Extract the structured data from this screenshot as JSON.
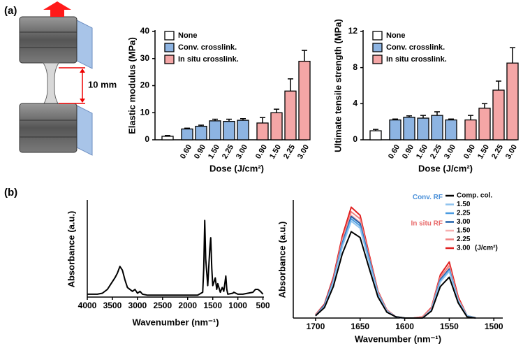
{
  "panels": [
    "(a)",
    "(b)"
  ],
  "schematic": {
    "label": "10 mm"
  },
  "chart_data": [
    {
      "type": "bar",
      "ylabel": "Elastic modulus (MPa)",
      "xlabel": "Dose (J/cm²)",
      "categories": [
        null,
        "0.60",
        "0.90",
        "1.50",
        "2.25",
        "3.00",
        "0.90",
        "1.50",
        "2.25",
        "3.00"
      ],
      "ylim": [
        0,
        40
      ],
      "yticks": [
        0,
        10,
        20,
        30,
        40
      ],
      "series": [
        {
          "name": "None",
          "color": "#ffffff",
          "values": [
            1.3,
            null,
            null,
            null,
            null,
            null,
            null,
            null,
            null,
            null
          ],
          "errors": [
            0.3,
            null,
            null,
            null,
            null,
            null,
            null,
            null,
            null,
            null
          ]
        },
        {
          "name": "Conv. crosslink.",
          "color": "#8db4e2",
          "values": [
            null,
            4.0,
            5.0,
            7.0,
            6.8,
            7.2,
            null,
            null,
            null,
            null
          ],
          "errors": [
            null,
            0.3,
            0.4,
            0.6,
            0.8,
            0.6,
            null,
            null,
            null,
            null
          ]
        },
        {
          "name": "In situ crosslink.",
          "color": "#f4a6a6",
          "values": [
            null,
            null,
            null,
            null,
            null,
            null,
            6.2,
            10,
            18,
            29
          ],
          "errors": [
            null,
            null,
            null,
            null,
            null,
            null,
            2.0,
            1.3,
            4.5,
            4.0
          ]
        }
      ]
    },
    {
      "type": "bar",
      "ylabel": "Ultimate tensile strength (MPa)",
      "xlabel": "Dose (J/cm²)",
      "categories": [
        null,
        "0.60",
        "0.90",
        "1.50",
        "2.25",
        "3.00",
        "0.90",
        "1.50",
        "2.25",
        "3.00"
      ],
      "ylim": [
        0,
        12
      ],
      "yticks": [
        0,
        4,
        8,
        12
      ],
      "series": [
        {
          "name": "None",
          "color": "#ffffff",
          "values": [
            1.0,
            null,
            null,
            null,
            null,
            null,
            null,
            null,
            null,
            null
          ],
          "errors": [
            0.15,
            null,
            null,
            null,
            null,
            null,
            null,
            null,
            null,
            null
          ]
        },
        {
          "name": "Conv. crosslink.",
          "color": "#8db4e2",
          "values": [
            null,
            2.2,
            2.5,
            2.4,
            2.7,
            2.2,
            null,
            null,
            null,
            null
          ],
          "errors": [
            null,
            0.1,
            0.15,
            0.3,
            0.4,
            0.1,
            null,
            null,
            null,
            null
          ]
        },
        {
          "name": "In situ crosslink.",
          "color": "#f4a6a6",
          "values": [
            null,
            null,
            null,
            null,
            null,
            null,
            2.2,
            3.5,
            5.5,
            8.5
          ],
          "errors": [
            null,
            null,
            null,
            null,
            null,
            null,
            0.5,
            0.5,
            1.0,
            1.7
          ]
        }
      ]
    },
    {
      "type": "line",
      "ylabel": "Absorbance (a.u.)",
      "xlabel": "Wavenumber (nm⁻¹)",
      "xlim": [
        4000,
        480
      ],
      "xticks": [
        4000,
        3500,
        3000,
        2500,
        2000,
        1500,
        1000,
        500
      ],
      "ylim": [
        0,
        1
      ],
      "x": [
        4000,
        3800,
        3700,
        3600,
        3500,
        3450,
        3400,
        3350,
        3300,
        3250,
        3200,
        3100,
        3050,
        3000,
        2950,
        2900,
        2800,
        2500,
        2000,
        1800,
        1700,
        1680,
        1660,
        1640,
        1600,
        1560,
        1540,
        1520,
        1500,
        1450,
        1420,
        1400,
        1350,
        1310,
        1280,
        1240,
        1220,
        1200,
        1100,
        1080,
        1000,
        900,
        700,
        650,
        600,
        550,
        500
      ],
      "series": [
        {
          "name": null,
          "color": "#000000",
          "values": [
            0.03,
            0.03,
            0.04,
            0.08,
            0.16,
            0.2,
            0.25,
            0.32,
            0.28,
            0.18,
            0.1,
            0.06,
            0.08,
            0.04,
            0.06,
            0.03,
            0.02,
            0.02,
            0.02,
            0.02,
            0.05,
            0.3,
            0.8,
            0.4,
            0.12,
            0.5,
            0.62,
            0.3,
            0.12,
            0.2,
            0.08,
            0.14,
            0.05,
            0.1,
            0.06,
            0.22,
            0.08,
            0.03,
            0.04,
            0.05,
            0.03,
            0.03,
            0.05,
            0.08,
            0.08,
            0.06,
            0.03
          ]
        }
      ]
    },
    {
      "type": "line",
      "ylabel": "Absorbance (a.u.)",
      "xlabel": "Wavenumber (nm⁻¹)",
      "xlim": [
        1725,
        1490
      ],
      "xticks": [
        1700,
        1650,
        1600,
        1550,
        1500
      ],
      "ylim": [
        0,
        1
      ],
      "x": [
        1700,
        1690,
        1680,
        1670,
        1660,
        1650,
        1640,
        1630,
        1620,
        1610,
        1600,
        1590,
        1580,
        1570,
        1560,
        1550,
        1540,
        1530,
        1520
      ],
      "legend_unit": "(J/cm²)",
      "series": [
        {
          "name": "Comp. col.",
          "color": "#000000",
          "values": [
            0.02,
            0.09,
            0.27,
            0.55,
            0.74,
            0.69,
            0.43,
            0.18,
            0.05,
            0.01,
            0,
            0,
            0,
            0.06,
            0.27,
            0.35,
            0.13,
            0.01,
            0
          ]
        },
        {
          "name": "1.50",
          "color": "#8fc3ee",
          "group": "Conv. RF",
          "group_color": "#4a90d9",
          "values": [
            0.02,
            0.1,
            0.31,
            0.61,
            0.83,
            0.77,
            0.48,
            0.2,
            0.06,
            0.01,
            0,
            0,
            0,
            0.07,
            0.31,
            0.4,
            0.15,
            0.02,
            0
          ]
        },
        {
          "name": "2.25",
          "color": "#4a9be0",
          "values": [
            0.02,
            0.1,
            0.31,
            0.63,
            0.85,
            0.79,
            0.5,
            0.21,
            0.06,
            0.01,
            0,
            0,
            0,
            0.07,
            0.32,
            0.41,
            0.15,
            0.02,
            0
          ]
        },
        {
          "name": "3.00",
          "color": "#1f5fa8",
          "values": [
            0.02,
            0.11,
            0.32,
            0.64,
            0.87,
            0.81,
            0.51,
            0.21,
            0.06,
            0.01,
            0,
            0,
            0,
            0.07,
            0.33,
            0.42,
            0.15,
            0.02,
            0
          ]
        },
        {
          "name": "1.50",
          "color": "#f6b0b0",
          "group": "In situ RF",
          "group_color": "#e86a6a",
          "values": [
            0.02,
            0.11,
            0.32,
            0.65,
            0.88,
            0.82,
            0.51,
            0.22,
            0.06,
            0.01,
            0,
            0,
            0,
            0.08,
            0.33,
            0.43,
            0.16,
            0.02,
            0
          ]
        },
        {
          "name": "2.25",
          "color": "#f08080",
          "values": [
            0.03,
            0.11,
            0.33,
            0.67,
            0.91,
            0.85,
            0.53,
            0.22,
            0.07,
            0.01,
            0,
            0,
            0.01,
            0.08,
            0.35,
            0.45,
            0.16,
            0.02,
            0
          ]
        },
        {
          "name": "3.00",
          "color": "#e02020",
          "values": [
            0.03,
            0.12,
            0.35,
            0.7,
            0.95,
            0.88,
            0.55,
            0.23,
            0.07,
            0.01,
            0,
            0,
            0.01,
            0.09,
            0.37,
            0.48,
            0.18,
            0.02,
            0
          ]
        }
      ]
    }
  ]
}
